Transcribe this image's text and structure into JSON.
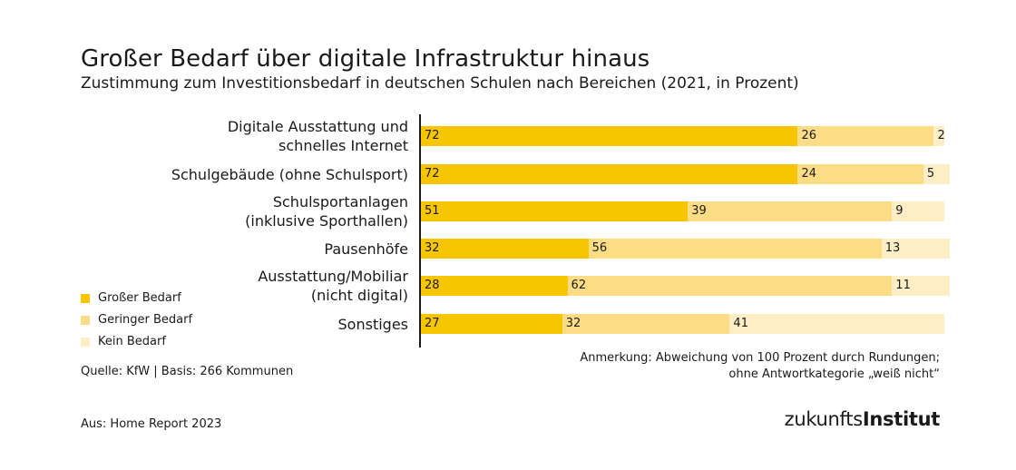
{
  "chart_data": {
    "type": "bar",
    "orientation": "horizontal",
    "stacked": true,
    "title": "Großer Bedarf über digitale Infrastruktur hinaus",
    "subtitle": "Zustimmung zum Investitionsbedarf in deutschen Schulen nach Bereichen (2021, in Prozent)",
    "categories": [
      [
        "Digitale Ausstattung und",
        "schnelles Internet"
      ],
      [
        "Schulgebäude (ohne Schulsport)"
      ],
      [
        "Schulsportanlagen",
        "(inklusive Sporthallen)"
      ],
      [
        "Pausenhöfe"
      ],
      [
        "Ausstattung/Mobiliar",
        "(nicht digital)"
      ],
      [
        "Sonstiges"
      ]
    ],
    "series": [
      {
        "name": "Großer Bedarf",
        "color": "#f7c600",
        "values": [
          72,
          72,
          51,
          32,
          28,
          27
        ]
      },
      {
        "name": "Geringer Bedarf",
        "color": "#fcdc84",
        "values": [
          26,
          24,
          39,
          56,
          62,
          32
        ]
      },
      {
        "name": "Kein Bedarf",
        "color": "#fdeec5",
        "values": [
          2,
          5,
          9,
          13,
          11,
          41
        ]
      }
    ],
    "xlim": [
      0,
      100
    ],
    "legend_position": "bottom-left",
    "source": "Quelle: KfW | Basis: 266 Kommunen",
    "note": [
      "Anmerkung: Abweichung von 100 Prozent durch Rundungen;",
      "ohne Antwortkategorie „weiß nicht“"
    ],
    "footer": "Aus: Home Report 2023"
  },
  "brand": {
    "part1": "zukunfts",
    "part2": "Institut"
  }
}
